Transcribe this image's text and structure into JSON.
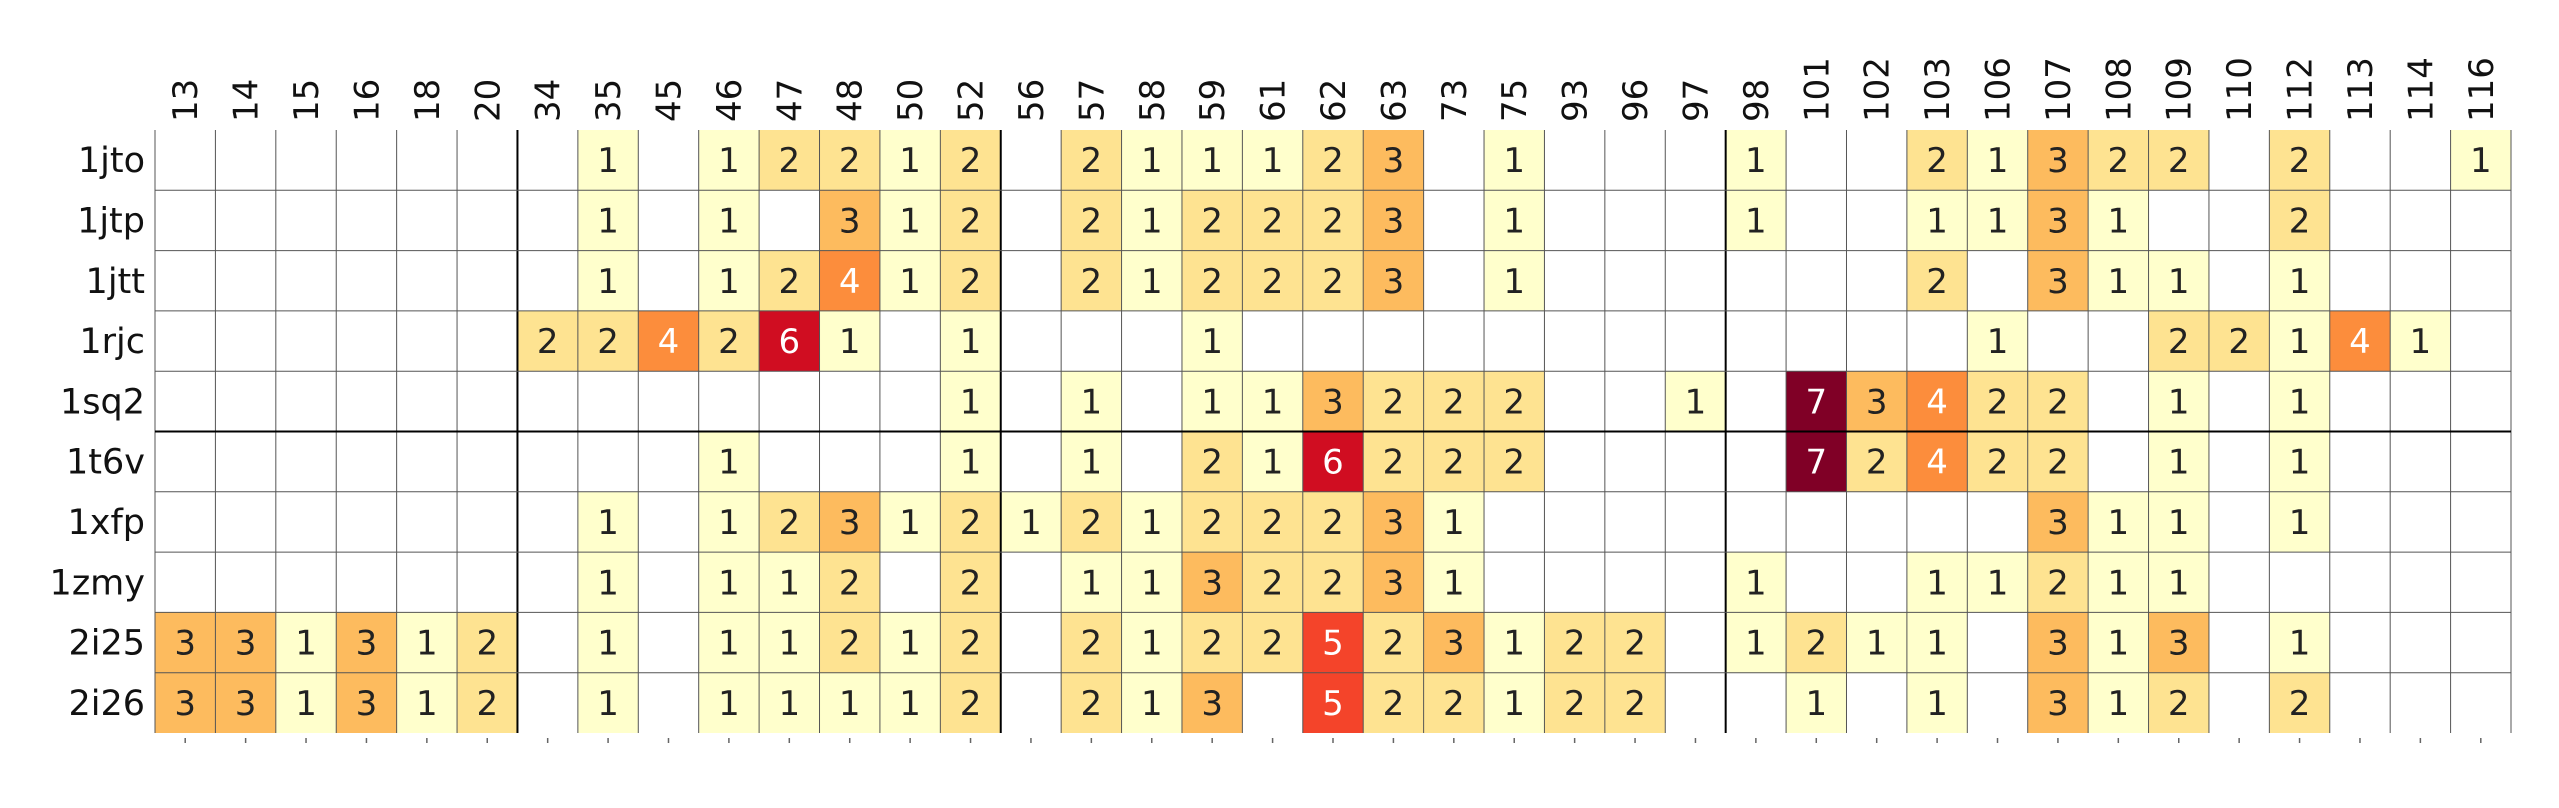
{
  "chart_data": {
    "type": "heatmap",
    "columns": [
      "13",
      "14",
      "15",
      "16",
      "18",
      "20",
      "34",
      "35",
      "45",
      "46",
      "47",
      "48",
      "50",
      "52",
      "56",
      "57",
      "58",
      "59",
      "61",
      "62",
      "63",
      "73",
      "75",
      "93",
      "96",
      "97",
      "98",
      "101",
      "102",
      "103",
      "106",
      "107",
      "108",
      "109",
      "110",
      "112",
      "113",
      "114",
      "116"
    ],
    "rows": [
      {
        "label": "1jto",
        "values": [
          null,
          null,
          null,
          null,
          null,
          null,
          null,
          1,
          null,
          1,
          2,
          2,
          1,
          2,
          null,
          2,
          1,
          1,
          1,
          2,
          3,
          null,
          1,
          null,
          null,
          null,
          1,
          null,
          null,
          2,
          1,
          3,
          2,
          2,
          null,
          2,
          null,
          null,
          1
        ]
      },
      {
        "label": "1jtp",
        "values": [
          null,
          null,
          null,
          null,
          null,
          null,
          null,
          1,
          null,
          1,
          null,
          3,
          1,
          2,
          null,
          2,
          1,
          2,
          2,
          2,
          3,
          null,
          1,
          null,
          null,
          null,
          1,
          null,
          null,
          1,
          1,
          3,
          1,
          null,
          null,
          2,
          null,
          null,
          null
        ]
      },
      {
        "label": "1jtt",
        "values": [
          null,
          null,
          null,
          null,
          null,
          null,
          null,
          1,
          null,
          1,
          2,
          4,
          1,
          2,
          null,
          2,
          1,
          2,
          2,
          2,
          3,
          null,
          1,
          null,
          null,
          null,
          null,
          null,
          null,
          2,
          null,
          3,
          1,
          1,
          null,
          1,
          null,
          null,
          null
        ]
      },
      {
        "label": "1rjc",
        "values": [
          null,
          null,
          null,
          null,
          null,
          null,
          2,
          2,
          4,
          2,
          6,
          1,
          null,
          1,
          null,
          null,
          null,
          1,
          null,
          null,
          null,
          null,
          null,
          null,
          null,
          null,
          null,
          null,
          null,
          null,
          1,
          null,
          null,
          2,
          2,
          1,
          4,
          1,
          null
        ]
      },
      {
        "label": "1sq2",
        "values": [
          null,
          null,
          null,
          null,
          null,
          null,
          null,
          null,
          null,
          null,
          null,
          null,
          null,
          1,
          null,
          1,
          null,
          1,
          1,
          3,
          2,
          2,
          2,
          null,
          null,
          1,
          null,
          7,
          3,
          4,
          2,
          2,
          null,
          1,
          null,
          1,
          null,
          null,
          null
        ]
      },
      {
        "label": "1t6v",
        "values": [
          null,
          null,
          null,
          null,
          null,
          null,
          null,
          null,
          null,
          1,
          null,
          null,
          null,
          1,
          null,
          1,
          null,
          2,
          1,
          6,
          2,
          2,
          2,
          null,
          null,
          null,
          null,
          7,
          2,
          4,
          2,
          2,
          null,
          1,
          null,
          1,
          null,
          null,
          null
        ]
      },
      {
        "label": "1xfp",
        "values": [
          null,
          null,
          null,
          null,
          null,
          null,
          null,
          1,
          null,
          1,
          2,
          3,
          1,
          2,
          1,
          2,
          1,
          2,
          2,
          2,
          3,
          1,
          null,
          null,
          null,
          null,
          null,
          null,
          null,
          null,
          null,
          3,
          1,
          1,
          null,
          1,
          null,
          null,
          null
        ]
      },
      {
        "label": "1zmy",
        "values": [
          null,
          null,
          null,
          null,
          null,
          null,
          null,
          1,
          null,
          1,
          1,
          2,
          null,
          2,
          null,
          1,
          1,
          3,
          2,
          2,
          3,
          1,
          null,
          null,
          null,
          null,
          1,
          null,
          null,
          1,
          1,
          2,
          1,
          1,
          null,
          null,
          null,
          null,
          null
        ]
      },
      {
        "label": "2i25",
        "values": [
          3,
          3,
          1,
          3,
          1,
          2,
          null,
          1,
          null,
          1,
          1,
          2,
          1,
          2,
          null,
          2,
          1,
          2,
          2,
          5,
          2,
          3,
          1,
          2,
          2,
          null,
          1,
          2,
          1,
          1,
          null,
          3,
          1,
          3,
          null,
          1,
          null,
          null,
          null
        ]
      },
      {
        "label": "2i26",
        "values": [
          3,
          3,
          1,
          3,
          1,
          2,
          null,
          1,
          null,
          1,
          1,
          1,
          1,
          2,
          null,
          2,
          1,
          3,
          null,
          5,
          2,
          2,
          1,
          2,
          2,
          null,
          null,
          1,
          null,
          1,
          null,
          3,
          1,
          2,
          null,
          2,
          null,
          null,
          null
        ]
      }
    ],
    "colors": {
      "1": "#ffffcc",
      "2": "#fee391",
      "3": "#fdbb5e",
      "4": "#fc8d3c",
      "5": "#f4442a",
      "6": "#d00d21",
      "7": "#800026",
      "grid": "#555555",
      "group_line": "#000000",
      "text_dark": "#222222",
      "text_light": "#ffffff"
    },
    "title": "",
    "xlabel": "",
    "ylabel": ""
  }
}
